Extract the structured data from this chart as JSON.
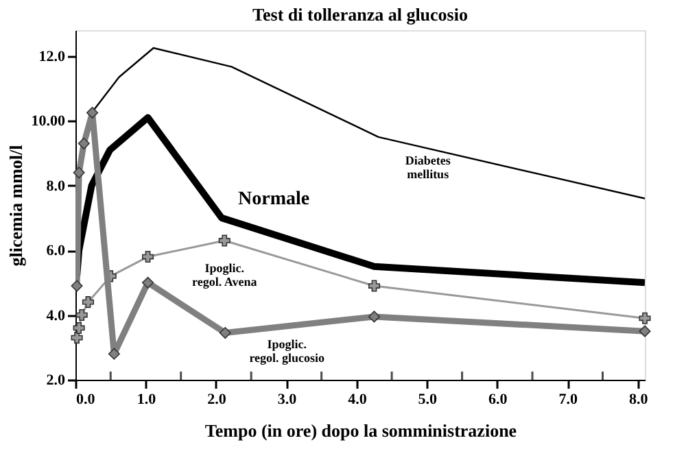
{
  "chart_data": {
    "type": "line",
    "title": "Test di tolleranza al glucosio",
    "xlabel": "Tempo (in ore) dopo la somministrazione",
    "ylabel": "glicemia mmol/l",
    "xlim": [
      0,
      8.1
    ],
    "ylim": [
      2,
      12.8
    ],
    "xticks": [
      {
        "value": 0,
        "label": "0.0"
      },
      {
        "value": 0.5,
        "label": null
      },
      {
        "value": 1,
        "label": "1.0"
      },
      {
        "value": 1.5,
        "label": null
      },
      {
        "value": 2,
        "label": "2.0"
      },
      {
        "value": 2.5,
        "label": null
      },
      {
        "value": 3,
        "label": "3.0"
      },
      {
        "value": 3.5,
        "label": null
      },
      {
        "value": 4,
        "label": "4.0"
      },
      {
        "value": 4.5,
        "label": null
      },
      {
        "value": 5,
        "label": "5.0"
      },
      {
        "value": 5.5,
        "label": null
      },
      {
        "value": 6,
        "label": "6.0"
      },
      {
        "value": 6.5,
        "label": null
      },
      {
        "value": 7,
        "label": "7.0"
      },
      {
        "value": 7.5,
        "label": null
      },
      {
        "value": 8,
        "label": "8.0"
      }
    ],
    "yticks": [
      {
        "value": 2,
        "label": "2.0"
      },
      {
        "value": 4,
        "label": "4.0"
      },
      {
        "value": 6,
        "label": "6.0"
      },
      {
        "value": 8,
        "label": "8.0"
      },
      {
        "value": 10,
        "label": "10.00"
      },
      {
        "value": 12,
        "label": "12.0"
      }
    ],
    "grid": false,
    "line_style": "solid",
    "series": [
      {
        "color": "#000000",
        "marker": "none",
        "x": [
          0,
          0.25,
          0.62,
          1.11,
          2.22,
          4.31,
          8.1
        ],
        "values": [
          7.9,
          10.3,
          11.35,
          12.25,
          11.67,
          9.5,
          7.6
        ]
      },
      {
        "color": "#000000",
        "marker": "none",
        "x": [
          0.02,
          0.05,
          0.23,
          0.49,
          1.03,
          2.08,
          4.25,
          8.1
        ],
        "values": [
          5.2,
          6.0,
          8.0,
          9.1,
          10.1,
          7.0,
          5.5,
          5.0
        ]
      },
      {
        "color": "#999999",
        "marker": "cross",
        "x": [
          0.02,
          0.05,
          0.09,
          0.18,
          0.5,
          1.03,
          2.12,
          4.25,
          8.1
        ],
        "values": [
          3.3,
          3.6,
          4.0,
          4.4,
          5.2,
          5.8,
          6.3,
          4.9,
          3.9
        ]
      },
      {
        "color": "#808080",
        "marker": "diamond",
        "x": [
          0.02,
          0.05,
          0.12,
          0.24,
          0.55,
          1.03,
          2.13,
          4.25,
          8.1
        ],
        "values": [
          4.9,
          8.4,
          9.3,
          10.25,
          2.8,
          5.0,
          3.45,
          3.95,
          3.5
        ]
      }
    ],
    "annotations": [
      {
        "text": "Diabetes\nmellitus",
        "x": 4.31,
        "y": 9.5
      },
      {
        "text": "Normale",
        "x": 2.08,
        "y": 7.0
      },
      {
        "text": "Ipoglic.\nregol. Avena",
        "x": 2.12,
        "y": 6.3
      },
      {
        "text": "Ipoglic.\nregol. glucosio",
        "x": 2.13,
        "y": 3.45
      }
    ]
  }
}
